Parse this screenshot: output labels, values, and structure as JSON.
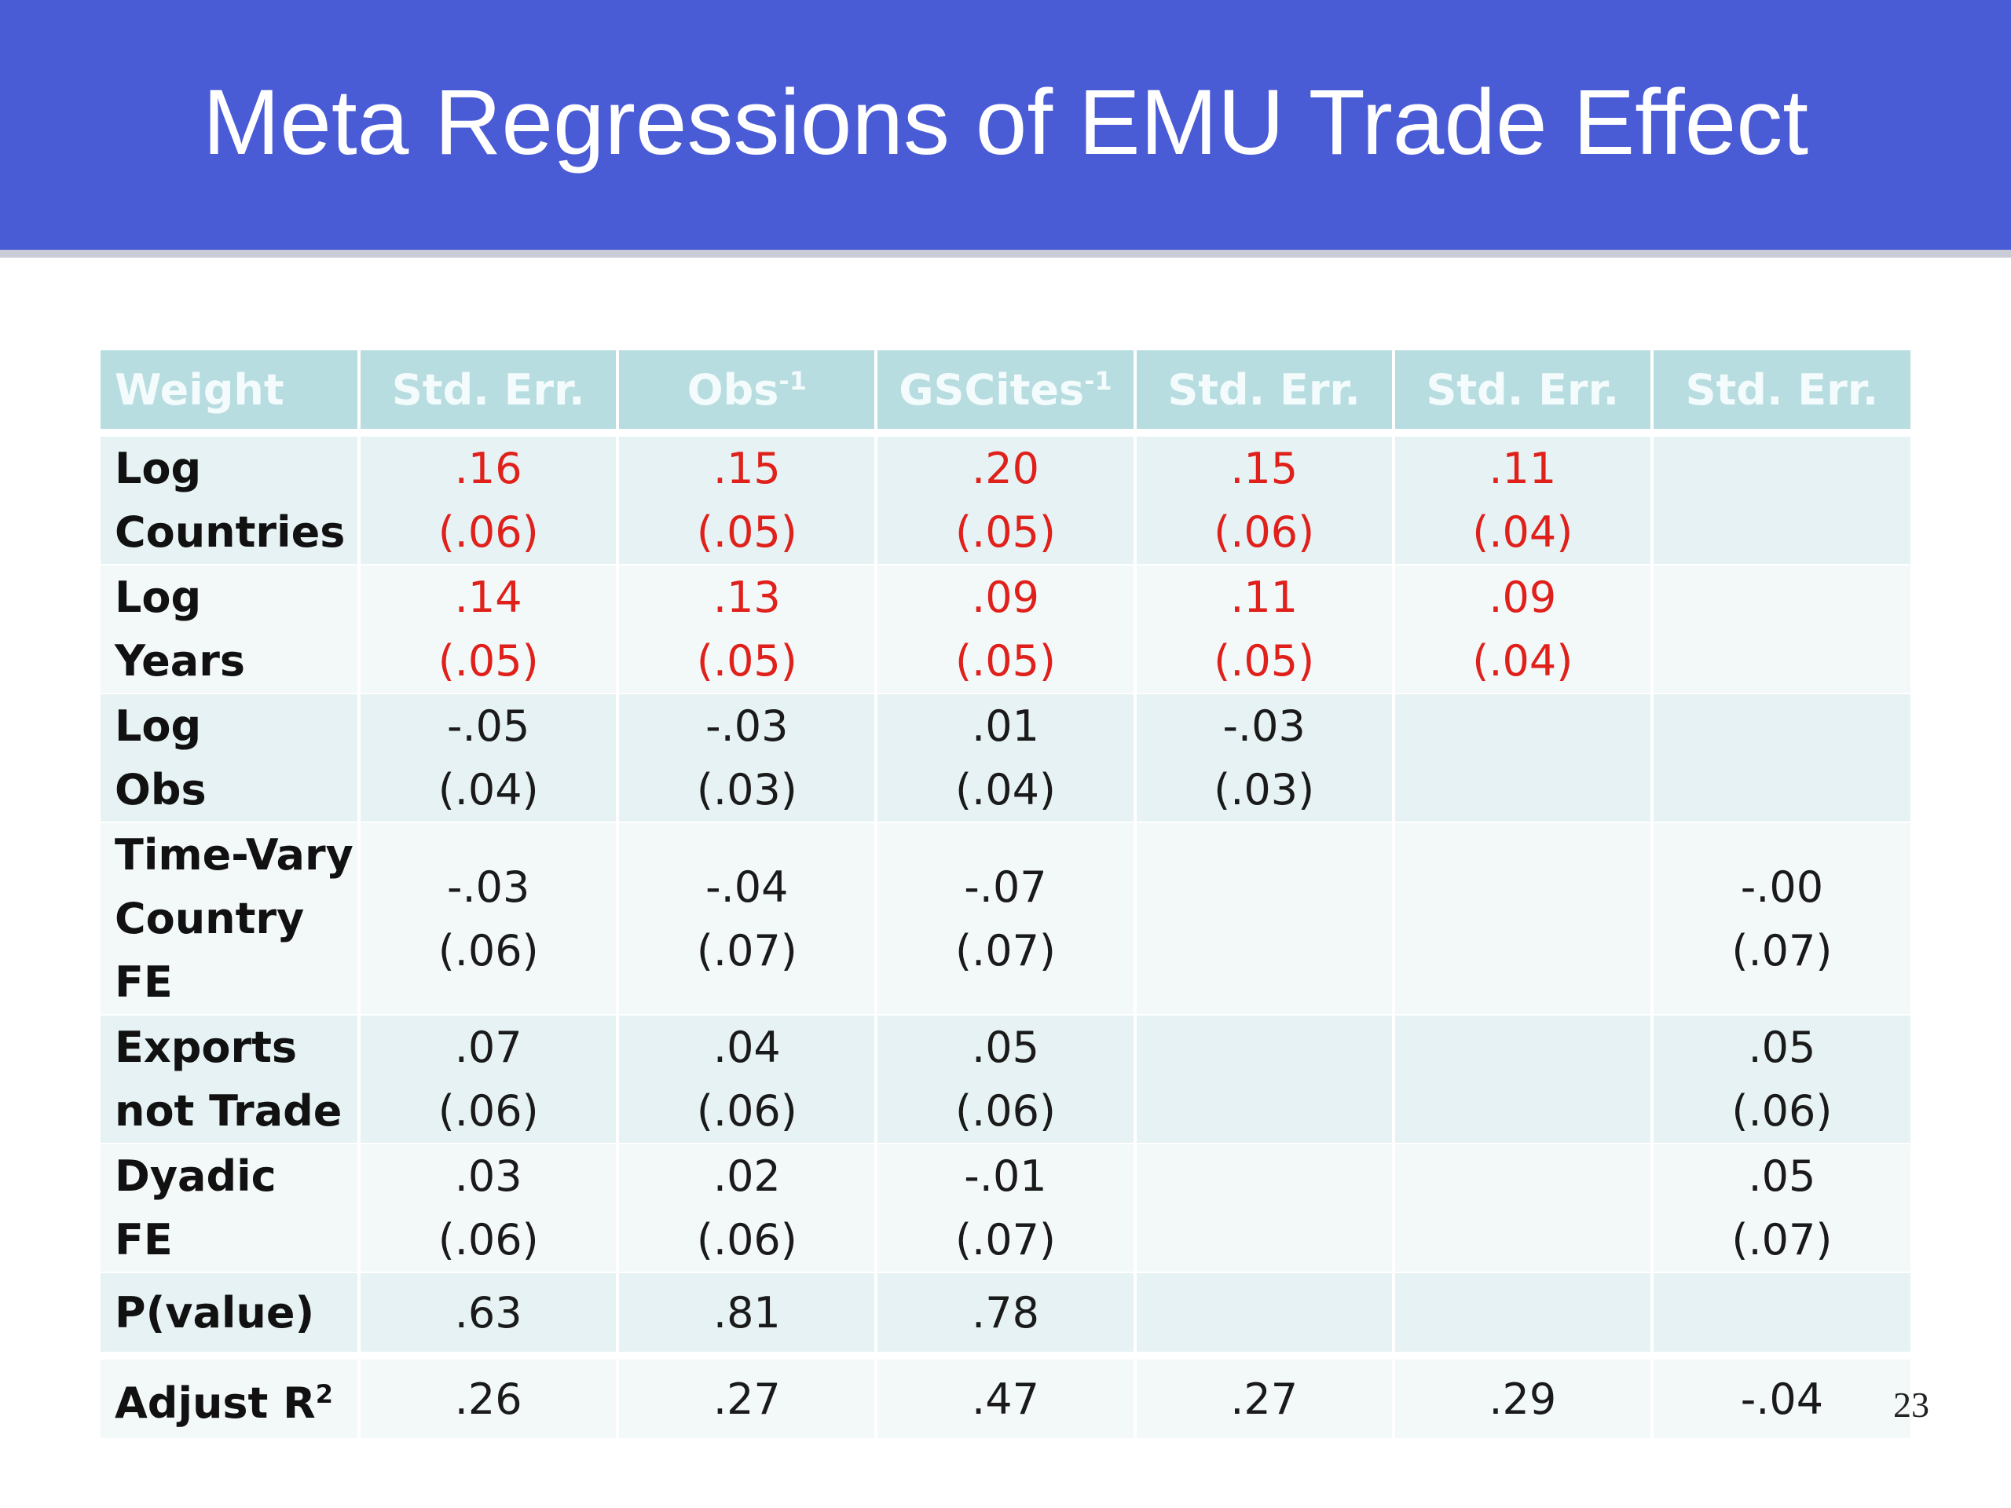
{
  "slide": {
    "title": "Meta Regressions of EMU Trade Effect",
    "page_number": "23"
  },
  "colors": {
    "title_bar": "#4a5bd6",
    "header_fill": "#b7dde0",
    "significant_text": "#e0201a"
  },
  "table": {
    "header": {
      "label": "Weight",
      "columns": [
        {
          "base": "Std. Err.",
          "sup": ""
        },
        {
          "base": "Obs",
          "sup": "-1"
        },
        {
          "base": "GSCites",
          "sup": "-1"
        },
        {
          "base": "Std. Err.",
          "sup": ""
        },
        {
          "base": "Std. Err.",
          "sup": ""
        },
        {
          "base": "Std. Err.",
          "sup": ""
        }
      ]
    },
    "rows": [
      {
        "label_line1": "Log",
        "label_line2": "Countries",
        "cells": [
          {
            "coef": ".16",
            "se": "(.06)",
            "significant": true
          },
          {
            "coef": ".15",
            "se": "(.05)",
            "significant": true
          },
          {
            "coef": ".20",
            "se": "(.05)",
            "significant": true
          },
          {
            "coef": ".15",
            "se": "(.06)",
            "significant": true
          },
          {
            "coef": ".11",
            "se": "(.04)",
            "significant": true
          },
          {
            "coef": "",
            "se": "",
            "significant": false
          }
        ]
      },
      {
        "label_line1": "Log",
        "label_line2": "Years",
        "cells": [
          {
            "coef": ".14",
            "se": "(.05)",
            "significant": true
          },
          {
            "coef": ".13",
            "se": "(.05)",
            "significant": true
          },
          {
            "coef": ".09",
            "se": "(.05)",
            "significant": true
          },
          {
            "coef": ".11",
            "se": "(.05)",
            "significant": true
          },
          {
            "coef": ".09",
            "se": "(.04)",
            "significant": true
          },
          {
            "coef": "",
            "se": "",
            "significant": false
          }
        ]
      },
      {
        "label_line1": "Log",
        "label_line2": "Obs",
        "cells": [
          {
            "coef": "-.05",
            "se": "(.04)",
            "significant": false
          },
          {
            "coef": "-.03",
            "se": "(.03)",
            "significant": false
          },
          {
            "coef": ".01",
            "se": "(.04)",
            "significant": false
          },
          {
            "coef": "-.03",
            "se": "(.03)",
            "significant": false
          },
          {
            "coef": "",
            "se": "",
            "significant": false
          },
          {
            "coef": "",
            "se": "",
            "significant": false
          }
        ]
      },
      {
        "label_line1": "Time-Vary",
        "label_line2": "Country FE",
        "cells": [
          {
            "coef": "-.03",
            "se": "(.06)",
            "significant": false
          },
          {
            "coef": "-.04",
            "se": "(.07)",
            "significant": false
          },
          {
            "coef": "-.07",
            "se": "(.07)",
            "significant": false
          },
          {
            "coef": "",
            "se": "",
            "significant": false
          },
          {
            "coef": "",
            "se": "",
            "significant": false
          },
          {
            "coef": "-.00",
            "se": "(.07)",
            "significant": false
          }
        ]
      },
      {
        "label_line1": "Exports",
        "label_line2": "not Trade",
        "cells": [
          {
            "coef": ".07",
            "se": "(.06)",
            "significant": false
          },
          {
            "coef": ".04",
            "se": "(.06)",
            "significant": false
          },
          {
            "coef": ".05",
            "se": "(.06)",
            "significant": false
          },
          {
            "coef": "",
            "se": "",
            "significant": false
          },
          {
            "coef": "",
            "se": "",
            "significant": false
          },
          {
            "coef": ".05",
            "se": "(.06)",
            "significant": false
          }
        ]
      },
      {
        "label_line1": "Dyadic",
        "label_line2": "FE",
        "cells": [
          {
            "coef": ".03",
            "se": "(.06)",
            "significant": false
          },
          {
            "coef": ".02",
            "se": "(.06)",
            "significant": false
          },
          {
            "coef": "-.01",
            "se": "(.07)",
            "significant": false
          },
          {
            "coef": "",
            "se": "",
            "significant": false
          },
          {
            "coef": "",
            "se": "",
            "significant": false
          },
          {
            "coef": ".05",
            "se": "(.07)",
            "significant": false
          }
        ]
      }
    ],
    "pvalue_row": {
      "label": "P(value)",
      "values": [
        ".63",
        ".81",
        ".78",
        "",
        "",
        ""
      ]
    },
    "r2_row": {
      "label": "Adjust R",
      "label_sup": "2",
      "values": [
        ".26",
        ".27",
        ".47",
        ".27",
        ".29",
        "-.04"
      ]
    }
  }
}
